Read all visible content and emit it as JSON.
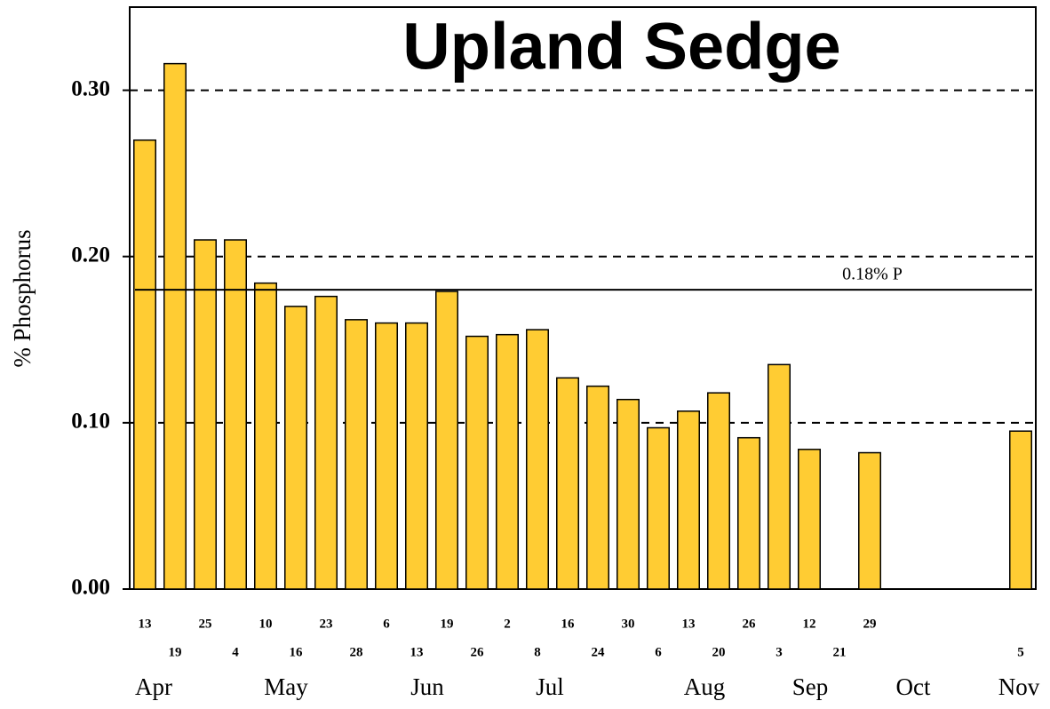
{
  "chart_data": {
    "type": "bar",
    "title": "Upland Sedge",
    "y_label": "% Phosphorus",
    "categories": [
      "13",
      "19",
      "25",
      "4",
      "10",
      "16",
      "23",
      "28",
      "6",
      "13",
      "19",
      "26",
      "2",
      "8",
      "16",
      "24",
      "30",
      "6",
      "13",
      "20",
      "26",
      "3",
      "12",
      "21",
      "29",
      null,
      null,
      null,
      null,
      "5"
    ],
    "values": [
      0.27,
      0.316,
      0.21,
      0.21,
      0.184,
      0.17,
      0.176,
      0.162,
      0.16,
      0.16,
      0.179,
      0.152,
      0.153,
      0.156,
      0.127,
      0.122,
      0.114,
      0.097,
      0.107,
      0.118,
      0.091,
      0.135,
      0.084,
      null,
      0.082,
      null,
      null,
      null,
      null,
      0.095
    ],
    "months": [
      "Apr",
      "May",
      "Jun",
      "Jul",
      "Aug",
      "Sep",
      "Oct",
      "Nov"
    ],
    "color": "#ffcc33",
    "ylim": [
      0,
      0.35
    ],
    "yticks": [
      {
        "value": 0,
        "label": "0.00"
      },
      {
        "value": 0.1,
        "label": "0.10"
      },
      {
        "value": 0.2,
        "label": "0.20"
      },
      {
        "value": 0.3,
        "label": "0.30"
      }
    ],
    "grid": true,
    "reference_line": {
      "value": 0.18,
      "label": "0.18% P"
    }
  }
}
